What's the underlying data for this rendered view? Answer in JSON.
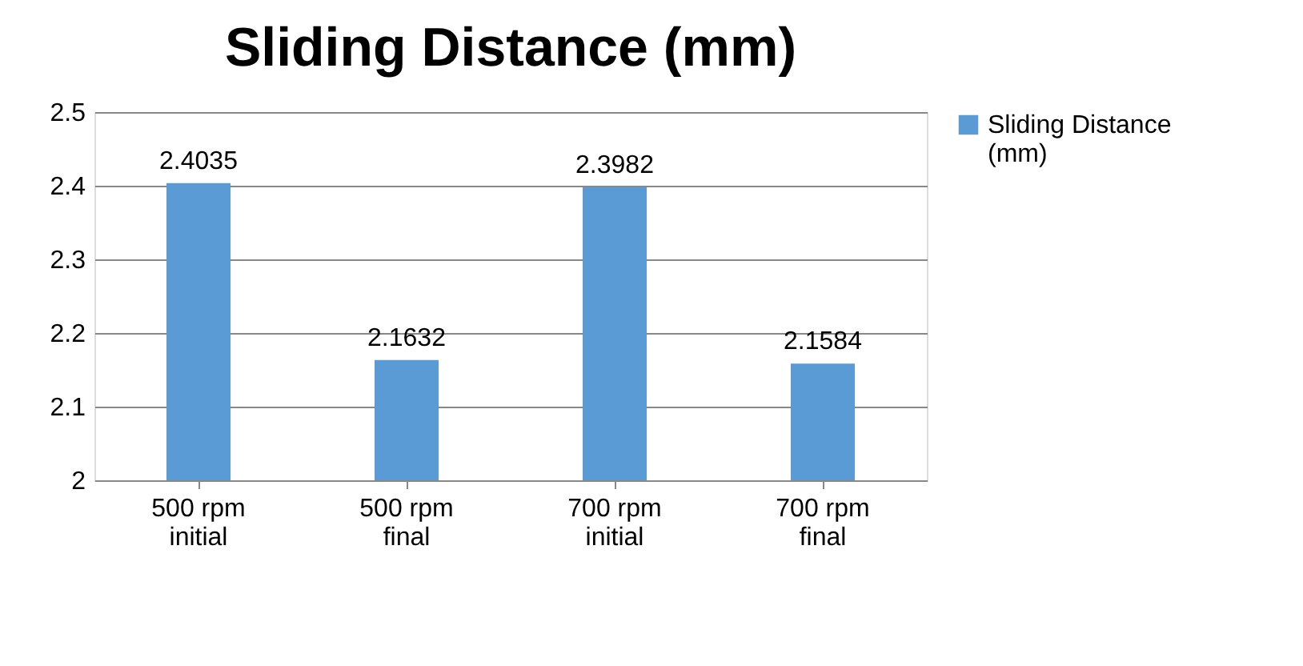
{
  "chart_data": {
    "type": "bar",
    "title": "Sliding Distance  (mm)",
    "categories": [
      "500 rpm initial",
      "500 rpm final",
      "700 rpm initial",
      "700 rpm final"
    ],
    "series": [
      {
        "name": "Sliding Distance (mm)",
        "color": "#5b9bd5",
        "values": [
          2.4035,
          2.1632,
          2.3982,
          2.1584
        ]
      }
    ],
    "ylim": [
      2,
      2.5
    ],
    "yticks": [
      2,
      2.1,
      2.2,
      2.3,
      2.4,
      2.5
    ],
    "grid": "y",
    "legend": "right",
    "data_labels": true
  }
}
